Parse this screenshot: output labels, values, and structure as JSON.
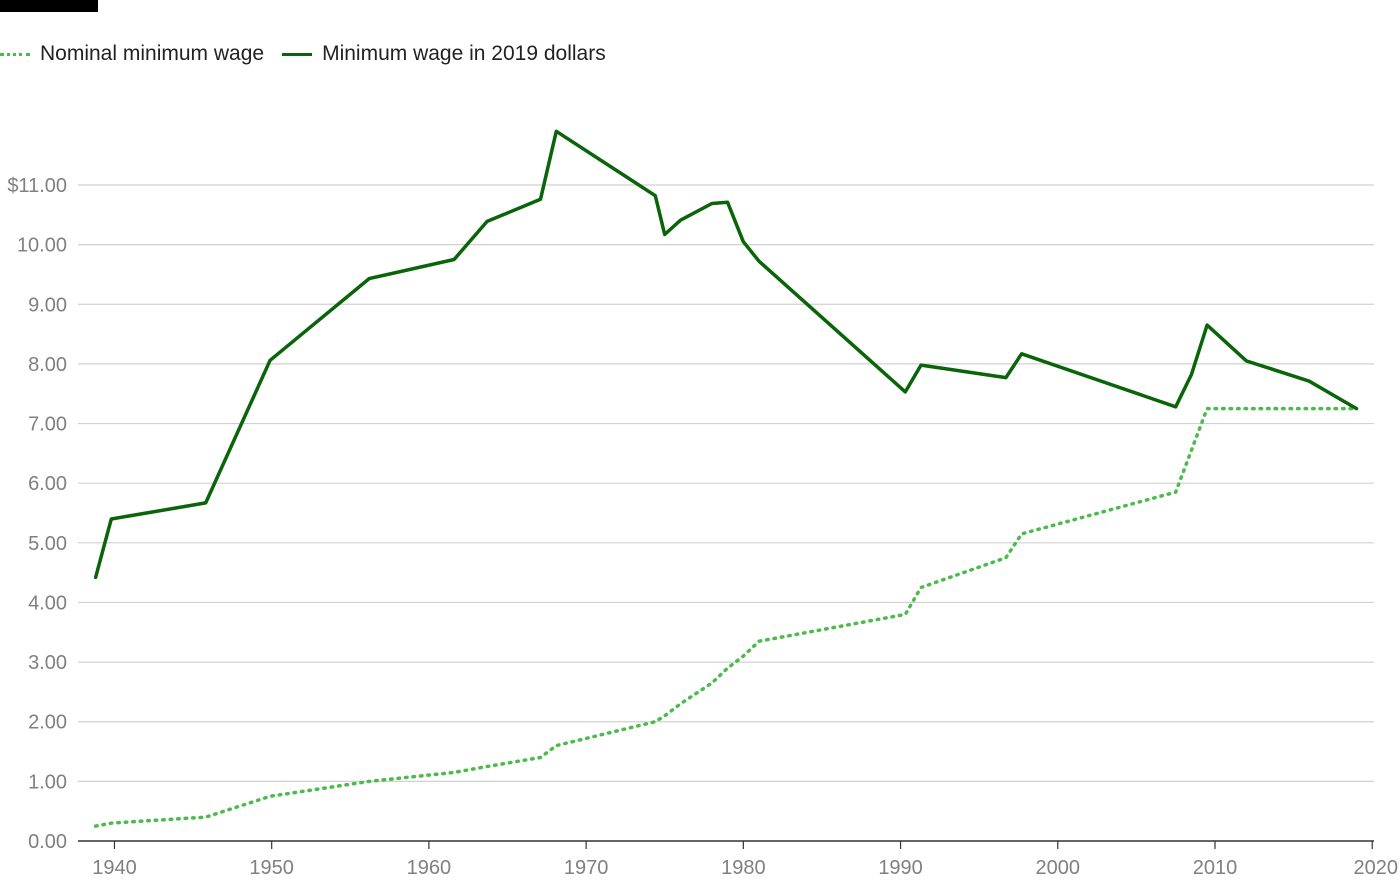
{
  "chart_data": {
    "type": "line",
    "title": "",
    "xlabel": "",
    "ylabel": "",
    "xlim": [
      1938,
      2020
    ],
    "ylim": [
      0,
      11
    ],
    "legend_position": "top-left",
    "grid": true,
    "x_ticks": [
      1940,
      1950,
      1960,
      1970,
      1980,
      1990,
      2000,
      2010,
      2020
    ],
    "y_ticks": [
      0,
      1,
      2,
      3,
      4,
      5,
      6,
      7,
      8,
      9,
      10,
      11
    ],
    "y_tick_labels": [
      "0.00",
      "1.00",
      "2.00",
      "3.00",
      "4.00",
      "5.00",
      "6.00",
      "7.00",
      "8.00",
      "9.00",
      "10.00",
      "$11.00"
    ],
    "series": [
      {
        "name": "Nominal minimum wage",
        "style": "dotted",
        "color": "#4cbb4c",
        "points": [
          [
            1938.8,
            0.25
          ],
          [
            1939.8,
            0.3
          ],
          [
            1945.8,
            0.4
          ],
          [
            1949.9,
            0.75
          ],
          [
            1956.2,
            1.0
          ],
          [
            1961.6,
            1.15
          ],
          [
            1963.7,
            1.25
          ],
          [
            1967.1,
            1.4
          ],
          [
            1968.1,
            1.6
          ],
          [
            1974.4,
            2.0
          ],
          [
            1975.0,
            2.1
          ],
          [
            1976.0,
            2.3
          ],
          [
            1978.0,
            2.65
          ],
          [
            1979.0,
            2.9
          ],
          [
            1980.0,
            3.1
          ],
          [
            1981.0,
            3.35
          ],
          [
            1990.3,
            3.8
          ],
          [
            1991.3,
            4.25
          ],
          [
            1996.7,
            4.75
          ],
          [
            1997.7,
            5.15
          ],
          [
            2007.5,
            5.85
          ],
          [
            2008.5,
            6.55
          ],
          [
            2009.5,
            7.25
          ],
          [
            2019.0,
            7.25
          ]
        ]
      },
      {
        "name": "Minimum wage in 2019 dollars",
        "style": "solid",
        "color": "#0a640a",
        "points": [
          [
            1938.8,
            4.42
          ],
          [
            1939.8,
            5.4
          ],
          [
            1945.8,
            5.67
          ],
          [
            1949.9,
            8.06
          ],
          [
            1956.2,
            9.43
          ],
          [
            1961.6,
            9.75
          ],
          [
            1963.7,
            10.39
          ],
          [
            1967.1,
            10.76
          ],
          [
            1968.1,
            11.9
          ],
          [
            1974.4,
            10.82
          ],
          [
            1975.0,
            10.17
          ],
          [
            1976.0,
            10.41
          ],
          [
            1978.0,
            10.69
          ],
          [
            1979.0,
            10.71
          ],
          [
            1980.0,
            10.05
          ],
          [
            1981.0,
            9.72
          ],
          [
            1990.3,
            7.53
          ],
          [
            1991.3,
            7.98
          ],
          [
            1996.7,
            7.77
          ],
          [
            1997.7,
            8.17
          ],
          [
            2007.5,
            7.28
          ],
          [
            2008.5,
            7.82
          ],
          [
            2009.5,
            8.65
          ],
          [
            2012.0,
            8.05
          ],
          [
            2016.0,
            7.71
          ],
          [
            2019.0,
            7.25
          ]
        ]
      }
    ]
  }
}
